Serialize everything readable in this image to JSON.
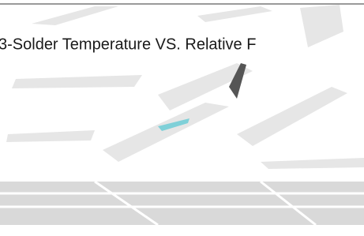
{
  "figure": {
    "title": "3-Solder Temperature VS. Relative F"
  }
}
